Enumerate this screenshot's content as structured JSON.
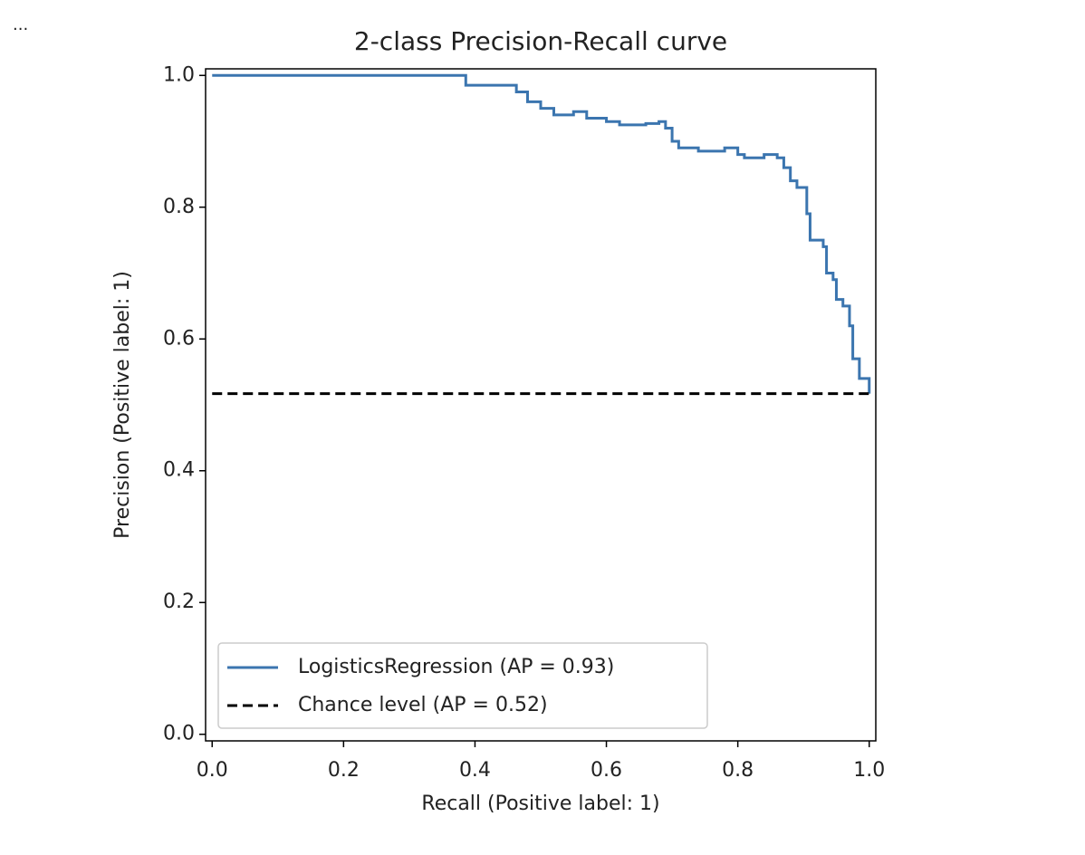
{
  "cell_prompt": "...",
  "chart_data": {
    "type": "line",
    "title": "2-class Precision-Recall curve",
    "x_label": "Recall (Positive label: 1)",
    "y_label": "Precision (Positive label: 1)",
    "drawstyle": "steps-post",
    "legend": "lower left",
    "xlim": [
      -0.01,
      1.01
    ],
    "ylim": [
      -0.01,
      1.01
    ],
    "xticks": [
      {
        "value": 0,
        "label": "0.0"
      },
      0.2,
      0.4,
      0.6,
      0.8,
      {
        "value": 1,
        "label": "1.0"
      }
    ],
    "yticks": [
      {
        "value": 0,
        "label": "0.0"
      },
      0.2,
      0.4,
      0.6,
      0.8,
      {
        "value": 1,
        "label": "1.0"
      }
    ],
    "series": [
      {
        "name": "LogisticsRegression (AP = 0.93)",
        "color": "#3b75af",
        "linestyle": "solid",
        "x": [
          0,
          0.386,
          0.463,
          0.48,
          0.5,
          0.52,
          0.55,
          0.57,
          0.6,
          0.62,
          0.66,
          0.68,
          0.69,
          0.7,
          0.71,
          0.74,
          0.78,
          0.8,
          0.81,
          0.84,
          0.86,
          0.87,
          0.88,
          0.89,
          0.905,
          0.91,
          0.93,
          0.935,
          0.945,
          0.95,
          0.96,
          0.97,
          0.975,
          0.985,
          1.0
        ],
        "values": [
          1.0,
          0.985,
          0.975,
          0.96,
          0.95,
          0.94,
          0.945,
          0.935,
          0.93,
          0.925,
          0.927,
          0.93,
          0.92,
          0.9,
          0.89,
          0.885,
          0.89,
          0.88,
          0.875,
          0.88,
          0.875,
          0.86,
          0.84,
          0.83,
          0.79,
          0.75,
          0.74,
          0.7,
          0.69,
          0.66,
          0.65,
          0.62,
          0.57,
          0.54,
          0.517
        ]
      },
      {
        "name": "Chance level (AP = 0.52)",
        "color": "#000000",
        "linestyle": "dashed",
        "x": [
          0,
          1
        ],
        "values": [
          0.517,
          0.517
        ]
      }
    ]
  }
}
